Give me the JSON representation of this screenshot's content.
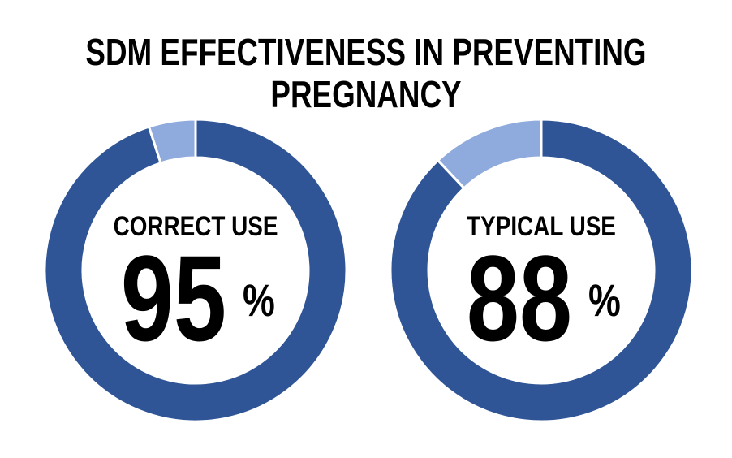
{
  "chart_data": {
    "type": "pie",
    "title_lines": [
      "SDM EFFECTIVENESS IN PREVENTING",
      "PREGNANCY"
    ],
    "charts": [
      {
        "label": "CORRECT USE",
        "value": 95,
        "value_text": "95",
        "unit": "%",
        "slices": [
          95,
          5
        ]
      },
      {
        "label": "TYPICAL USE",
        "value": 88,
        "value_text": "88",
        "unit": "%",
        "slices": [
          88,
          12
        ]
      }
    ],
    "colors": {
      "primary": "#2f5597",
      "secondary": "#8faadc",
      "background": "#ffffff"
    }
  }
}
